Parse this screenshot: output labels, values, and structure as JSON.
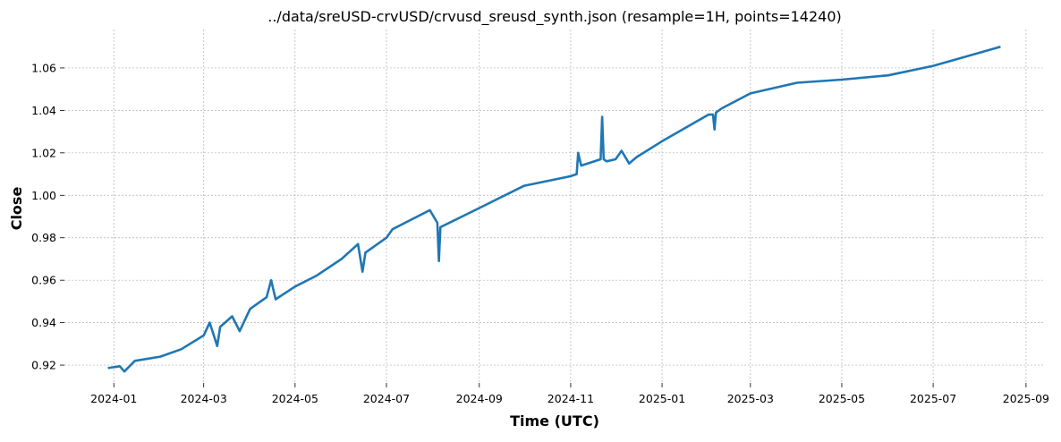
{
  "chart_data": {
    "type": "line",
    "title": "../data/sreUSD-crvUSD/crvusd_sreusd_synth.json  (resample=1H, points=14240)",
    "xlabel": "Time (UTC)",
    "ylabel": "Close",
    "xlim": [
      "2023-11-29",
      "2025-09-13"
    ],
    "ylim": [
      0.9116,
      1.0781
    ],
    "x_ticks": [
      "2024-01",
      "2024-03",
      "2024-05",
      "2024-07",
      "2024-09",
      "2024-11",
      "2025-01",
      "2025-03",
      "2025-05",
      "2025-07",
      "2025-09"
    ],
    "y_ticks": [
      0.92,
      0.94,
      0.96,
      0.98,
      1.0,
      1.02,
      1.04,
      1.06
    ],
    "grid": true,
    "color": "#1f77b4",
    "series": [
      {
        "x": [
          "2023-12-28",
          "2024-01-05",
          "2024-01-08",
          "2024-01-15",
          "2024-02-01",
          "2024-02-15",
          "2024-03-01",
          "2024-03-05",
          "2024-03-10",
          "2024-03-12",
          "2024-03-20",
          "2024-03-25",
          "2024-04-01",
          "2024-04-12",
          "2024-04-15",
          "2024-04-18",
          "2024-05-01",
          "2024-05-15",
          "2024-06-01",
          "2024-06-12",
          "2024-06-15",
          "2024-06-17",
          "2024-07-01",
          "2024-07-05",
          "2024-07-30",
          "2024-08-04",
          "2024-08-05",
          "2024-08-06",
          "2024-09-01",
          "2024-10-01",
          "2024-11-01",
          "2024-11-05",
          "2024-11-06",
          "2024-11-08",
          "2024-11-21",
          "2024-11-22",
          "2024-11-23",
          "2024-11-25",
          "2024-12-01",
          "2024-12-05",
          "2024-12-10",
          "2024-12-15",
          "2025-01-01",
          "2025-02-01",
          "2025-02-04",
          "2025-02-05",
          "2025-02-06",
          "2025-02-10",
          "2025-03-01",
          "2025-04-01",
          "2025-05-01",
          "2025-06-01",
          "2025-07-01",
          "2025-08-15"
        ],
        "y": [
          0.9186,
          0.9195,
          0.917,
          0.922,
          0.924,
          0.9275,
          0.934,
          0.94,
          0.929,
          0.938,
          0.943,
          0.936,
          0.9465,
          0.952,
          0.96,
          0.951,
          0.957,
          0.962,
          0.97,
          0.977,
          0.964,
          0.973,
          0.98,
          0.984,
          0.993,
          0.987,
          0.969,
          0.985,
          0.994,
          1.0045,
          1.009,
          1.01,
          1.02,
          1.014,
          1.017,
          1.037,
          1.017,
          1.016,
          1.017,
          1.021,
          1.015,
          1.018,
          1.0255,
          1.038,
          1.038,
          1.031,
          1.039,
          1.041,
          1.048,
          1.053,
          1.0545,
          1.0565,
          1.061,
          1.07
        ]
      }
    ]
  }
}
